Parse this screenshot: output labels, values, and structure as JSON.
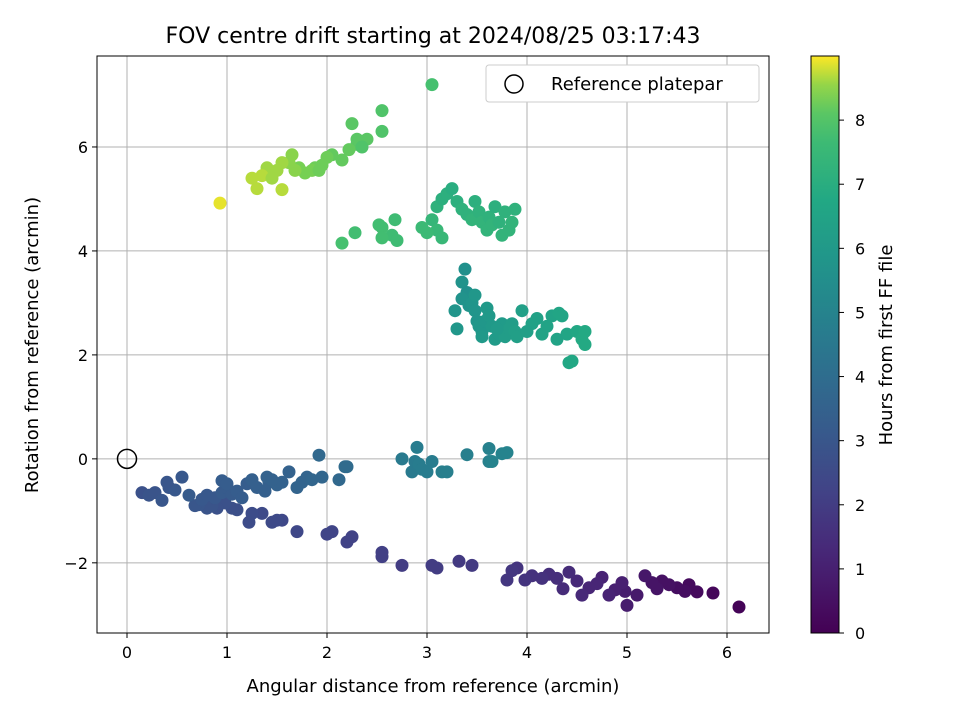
{
  "chart_data": {
    "type": "scatter",
    "title": "FOV centre drift starting at 2024/08/25 03:17:43",
    "xlabel": "Angular distance from reference (arcmin)",
    "ylabel": "Rotation from reference (arcmin)",
    "xlim": [
      -0.3,
      6.42
    ],
    "ylim": [
      -3.35,
      7.75
    ],
    "xticks": [
      0,
      1,
      2,
      3,
      4,
      5,
      6
    ],
    "yticks": [
      -2,
      0,
      2,
      4,
      6
    ],
    "grid": true,
    "legend": {
      "label": "Reference platepar",
      "position": "top-right"
    },
    "reference_point": {
      "x": 0,
      "y": 0
    },
    "colorbar": {
      "label": "Hours from first FF file",
      "range": [
        0,
        9
      ],
      "ticks": [
        0,
        1,
        2,
        3,
        4,
        5,
        6,
        7,
        8
      ],
      "colormap": "viridis"
    },
    "points": [
      [
        6.12,
        -2.85,
        0.1
      ],
      [
        5.86,
        -2.58,
        0.2
      ],
      [
        5.7,
        -2.56,
        0.3
      ],
      [
        5.62,
        -2.42,
        0.3
      ],
      [
        5.58,
        -2.55,
        0.4
      ],
      [
        5.5,
        -2.48,
        0.4
      ],
      [
        5.42,
        -2.42,
        0.5
      ],
      [
        5.35,
        -2.35,
        0.5
      ],
      [
        5.3,
        -2.5,
        0.6
      ],
      [
        5.25,
        -2.38,
        0.6
      ],
      [
        5.18,
        -2.25,
        0.7
      ],
      [
        5.1,
        -2.62,
        0.8
      ],
      [
        5.0,
        -2.82,
        0.9
      ],
      [
        4.98,
        -2.55,
        0.9
      ],
      [
        4.95,
        -2.38,
        1.0
      ],
      [
        4.88,
        -2.52,
        1.0
      ],
      [
        4.82,
        -2.62,
        1.1
      ],
      [
        4.75,
        -2.28,
        1.1
      ],
      [
        4.7,
        -2.4,
        1.2
      ],
      [
        4.62,
        -2.48,
        1.2
      ],
      [
        4.55,
        -2.62,
        1.3
      ],
      [
        4.5,
        -2.35,
        1.3
      ],
      [
        4.42,
        -2.18,
        1.4
      ],
      [
        4.36,
        -2.5,
        1.4
      ],
      [
        4.3,
        -2.3,
        1.5
      ],
      [
        4.22,
        -2.22,
        1.5
      ],
      [
        4.15,
        -2.3,
        1.6
      ],
      [
        4.05,
        -2.25,
        1.6
      ],
      [
        3.98,
        -2.33,
        1.7
      ],
      [
        3.9,
        -2.1,
        1.7
      ],
      [
        3.85,
        -2.15,
        1.8
      ],
      [
        3.8,
        -2.33,
        1.8
      ],
      [
        3.45,
        -2.05,
        1.9
      ],
      [
        3.32,
        -1.97,
        1.9
      ],
      [
        3.1,
        -2.1,
        2.0
      ],
      [
        3.05,
        -2.05,
        2.0
      ],
      [
        2.75,
        -2.05,
        2.0
      ],
      [
        2.55,
        -1.8,
        2.1
      ],
      [
        2.55,
        -1.88,
        2.1
      ],
      [
        2.25,
        -1.5,
        2.2
      ],
      [
        2.2,
        -1.6,
        2.2
      ],
      [
        2.05,
        -1.4,
        2.3
      ],
      [
        2.0,
        -1.45,
        2.3
      ],
      [
        1.7,
        -1.4,
        2.4
      ],
      [
        1.55,
        -1.18,
        2.4
      ],
      [
        1.5,
        -1.18,
        2.5
      ],
      [
        1.45,
        -1.22,
        2.5
      ],
      [
        1.35,
        -1.05,
        2.5
      ],
      [
        1.25,
        -1.05,
        2.6
      ],
      [
        1.22,
        -1.22,
        2.6
      ],
      [
        1.1,
        -0.98,
        2.7
      ],
      [
        1.05,
        -0.95,
        2.7
      ],
      [
        0.98,
        -0.85,
        2.8
      ],
      [
        0.9,
        -0.95,
        2.8
      ],
      [
        0.85,
        -0.9,
        2.9
      ],
      [
        0.8,
        -0.95,
        2.9
      ],
      [
        0.78,
        -0.85,
        2.9
      ],
      [
        0.72,
        -0.88,
        3.0
      ],
      [
        0.68,
        -0.9,
        3.0
      ],
      [
        0.75,
        -0.78,
        3.1
      ],
      [
        0.8,
        -0.7,
        3.1
      ],
      [
        0.88,
        -0.75,
        3.1
      ],
      [
        0.95,
        -0.65,
        3.2
      ],
      [
        1.0,
        -0.55,
        3.2
      ],
      [
        1.05,
        -0.68,
        3.2
      ],
      [
        1.1,
        -0.62,
        3.3
      ],
      [
        1.15,
        -0.75,
        3.3
      ],
      [
        1.2,
        -0.48,
        3.3
      ],
      [
        1.25,
        -0.4,
        3.4
      ],
      [
        1.3,
        -0.55,
        3.4
      ],
      [
        1.38,
        -0.62,
        3.4
      ],
      [
        1.42,
        -0.45,
        3.4
      ],
      [
        1.5,
        -0.5,
        3.5
      ],
      [
        1.55,
        -0.45,
        3.5
      ],
      [
        1.62,
        -0.25,
        3.5
      ],
      [
        1.7,
        -0.55,
        3.6
      ],
      [
        1.75,
        -0.45,
        3.6
      ],
      [
        1.8,
        -0.35,
        3.6
      ],
      [
        1.85,
        -0.4,
        3.7
      ],
      [
        1.95,
        -0.35,
        3.7
      ],
      [
        1.92,
        0.07,
        3.8
      ],
      [
        2.12,
        -0.4,
        3.8
      ],
      [
        2.18,
        -0.15,
        3.9
      ],
      [
        2.2,
        -0.15,
        3.9
      ],
      [
        0.15,
        -0.65,
        2.8
      ],
      [
        0.22,
        -0.7,
        2.9
      ],
      [
        0.28,
        -0.65,
        2.9
      ],
      [
        0.35,
        -0.8,
        3.0
      ],
      [
        0.42,
        -0.55,
        3.0
      ],
      [
        0.48,
        -0.6,
        3.1
      ],
      [
        0.55,
        -0.35,
        3.1
      ],
      [
        0.4,
        -0.45,
        3.0
      ],
      [
        0.62,
        -0.7,
        3.2
      ],
      [
        0.95,
        -0.42,
        3.3
      ],
      [
        1.0,
        -0.48,
        3.3
      ],
      [
        1.4,
        -0.35,
        3.5
      ],
      [
        1.45,
        -0.4,
        3.5
      ],
      [
        2.75,
        0.0,
        4.6
      ],
      [
        2.85,
        -0.25,
        4.6
      ],
      [
        2.88,
        -0.05,
        4.6
      ],
      [
        2.92,
        -0.1,
        4.7
      ],
      [
        2.95,
        -0.2,
        4.7
      ],
      [
        3.0,
        -0.25,
        4.7
      ],
      [
        2.9,
        0.22,
        4.7
      ],
      [
        3.05,
        -0.05,
        4.7
      ],
      [
        3.15,
        -0.25,
        4.8
      ],
      [
        3.2,
        -0.25,
        4.8
      ],
      [
        3.4,
        0.08,
        4.8
      ],
      [
        3.62,
        0.2,
        4.9
      ],
      [
        3.62,
        -0.05,
        4.9
      ],
      [
        3.65,
        -0.05,
        5.0
      ],
      [
        3.75,
        0.1,
        5.0
      ],
      [
        3.8,
        0.12,
        5.0
      ],
      [
        3.35,
        3.4,
        5.7
      ],
      [
        3.38,
        3.65,
        5.6
      ],
      [
        3.4,
        3.2,
        5.6
      ],
      [
        3.35,
        3.08,
        5.7
      ],
      [
        3.42,
        2.95,
        5.7
      ],
      [
        3.45,
        3.0,
        5.8
      ],
      [
        3.48,
        2.85,
        5.8
      ],
      [
        3.5,
        2.65,
        5.8
      ],
      [
        3.52,
        2.55,
        5.9
      ],
      [
        3.55,
        2.45,
        5.9
      ],
      [
        3.58,
        2.65,
        5.9
      ],
      [
        3.6,
        2.9,
        6.0
      ],
      [
        3.62,
        2.75,
        6.0
      ],
      [
        3.65,
        2.55,
        6.0
      ],
      [
        3.68,
        2.3,
        6.1
      ],
      [
        3.72,
        2.4,
        6.1
      ],
      [
        3.75,
        2.6,
        6.1
      ],
      [
        3.78,
        2.35,
        6.2
      ],
      [
        3.82,
        2.5,
        6.2
      ],
      [
        3.85,
        2.6,
        6.2
      ],
      [
        3.88,
        2.45,
        6.3
      ],
      [
        3.9,
        2.35,
        6.3
      ],
      [
        3.95,
        2.85,
        6.3
      ],
      [
        4.05,
        2.6,
        6.4
      ],
      [
        4.1,
        2.7,
        6.4
      ],
      [
        4.15,
        2.4,
        6.5
      ],
      [
        4.2,
        2.55,
        6.5
      ],
      [
        4.25,
        2.75,
        6.5
      ],
      [
        4.32,
        2.8,
        6.6
      ],
      [
        4.35,
        2.75,
        6.6
      ],
      [
        4.4,
        2.4,
        6.6
      ],
      [
        4.42,
        1.85,
        6.7
      ],
      [
        4.45,
        1.88,
        6.7
      ],
      [
        4.5,
        2.45,
        6.7
      ],
      [
        4.55,
        2.3,
        6.8
      ],
      [
        4.58,
        2.45,
        6.8
      ],
      [
        4.58,
        2.2,
        6.8
      ],
      [
        3.28,
        2.85,
        5.8
      ],
      [
        3.3,
        2.5,
        5.9
      ],
      [
        3.48,
        3.15,
        5.9
      ],
      [
        3.55,
        2.35,
        6.0
      ],
      [
        3.7,
        2.5,
        6.1
      ],
      [
        4.0,
        2.45,
        6.3
      ],
      [
        4.3,
        2.3,
        6.5
      ],
      [
        3.1,
        4.85,
        7.2
      ],
      [
        3.15,
        5.0,
        7.1
      ],
      [
        3.2,
        5.1,
        7.1
      ],
      [
        3.25,
        5.2,
        7.0
      ],
      [
        3.3,
        4.95,
        7.1
      ],
      [
        3.35,
        4.8,
        7.2
      ],
      [
        3.4,
        4.7,
        7.2
      ],
      [
        3.45,
        4.6,
        7.3
      ],
      [
        3.48,
        4.95,
        7.1
      ],
      [
        3.52,
        4.75,
        7.2
      ],
      [
        3.55,
        4.55,
        7.3
      ],
      [
        3.6,
        4.4,
        7.3
      ],
      [
        3.62,
        4.65,
        7.2
      ],
      [
        3.65,
        4.5,
        7.3
      ],
      [
        3.68,
        4.85,
        7.1
      ],
      [
        3.72,
        4.55,
        7.2
      ],
      [
        3.75,
        4.3,
        7.3
      ],
      [
        3.78,
        4.75,
        7.2
      ],
      [
        3.82,
        4.4,
        7.3
      ],
      [
        3.85,
        4.55,
        7.3
      ],
      [
        3.88,
        4.8,
        7.2
      ],
      [
        3.05,
        4.6,
        7.4
      ],
      [
        3.1,
        4.4,
        7.5
      ],
      [
        3.15,
        4.25,
        7.5
      ],
      [
        3.0,
        4.35,
        7.6
      ],
      [
        2.95,
        4.45,
        7.6
      ],
      [
        2.68,
        4.6,
        7.7
      ],
      [
        2.65,
        4.3,
        7.7
      ],
      [
        2.55,
        4.45,
        7.8
      ],
      [
        2.55,
        4.25,
        7.8
      ],
      [
        2.52,
        4.5,
        7.8
      ],
      [
        2.28,
        4.35,
        7.8
      ],
      [
        2.15,
        4.15,
        7.9
      ],
      [
        2.7,
        4.2,
        7.7
      ],
      [
        3.05,
        7.2,
        7.9
      ],
      [
        2.55,
        6.7,
        8.0
      ],
      [
        2.55,
        6.3,
        8.0
      ],
      [
        2.4,
        6.15,
        8.1
      ],
      [
        2.3,
        6.05,
        8.1
      ],
      [
        2.25,
        6.45,
        8.1
      ],
      [
        2.3,
        6.15,
        8.1
      ],
      [
        2.22,
        5.95,
        8.2
      ],
      [
        2.15,
        5.75,
        8.2
      ],
      [
        2.05,
        5.85,
        8.2
      ],
      [
        2.0,
        5.8,
        8.3
      ],
      [
        1.95,
        5.65,
        8.3
      ],
      [
        1.88,
        5.6,
        8.3
      ],
      [
        1.85,
        5.55,
        8.4
      ],
      [
        1.78,
        5.5,
        8.4
      ],
      [
        1.72,
        5.6,
        8.4
      ],
      [
        1.68,
        5.55,
        8.5
      ],
      [
        1.62,
        5.7,
        8.5
      ],
      [
        1.65,
        5.85,
        8.5
      ],
      [
        1.55,
        5.7,
        8.6
      ],
      [
        1.5,
        5.55,
        8.6
      ],
      [
        1.4,
        5.6,
        8.6
      ],
      [
        1.35,
        5.45,
        8.7
      ],
      [
        1.3,
        5.2,
        8.7
      ],
      [
        1.25,
        5.4,
        8.7
      ],
      [
        1.55,
        5.18,
        8.7
      ],
      [
        0.93,
        4.92,
        8.9
      ],
      [
        2.35,
        6.0,
        8.0
      ],
      [
        1.92,
        5.55,
        8.3
      ],
      [
        1.45,
        5.4,
        8.6
      ]
    ]
  }
}
